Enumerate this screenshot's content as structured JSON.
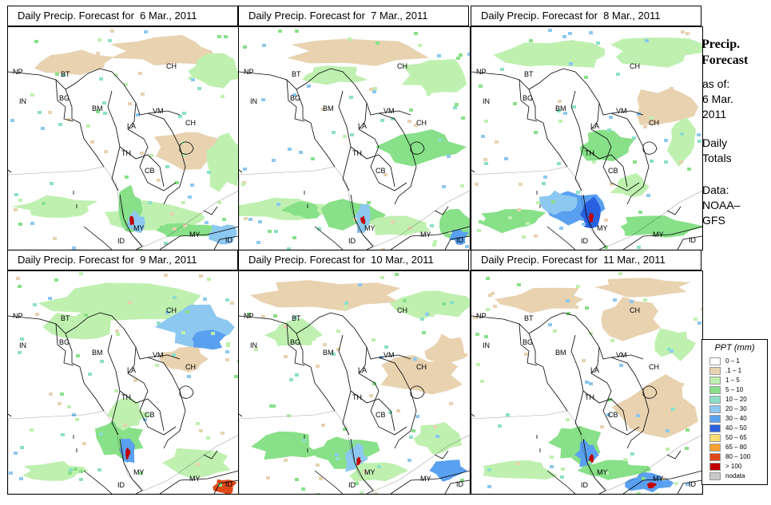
{
  "panels": [
    {
      "title": "Daily Precip. Forecast for  6 Mar., 2011"
    },
    {
      "title": "Daily Precip. Forecast for  7 Mar., 2011"
    },
    {
      "title": "Daily Precip. Forecast for  8 Mar., 2011"
    },
    {
      "title": "Daily Precip. Forecast for  9 Mar., 2011"
    },
    {
      "title": "Daily Precip. Forecast for  10 Mar., 2011"
    },
    {
      "title": "Daily Precip. Forecast for  11 Mar., 2011"
    }
  ],
  "country_labels": [
    "NP",
    "BT",
    "BG",
    "IN",
    "BM",
    "CH",
    "VM",
    "LA",
    "CH",
    "TH",
    "CB",
    "MY",
    "ID",
    "MY",
    "ID"
  ],
  "sidebar": {
    "title_line1": "Precip.",
    "title_line2": "Forecast",
    "asof_line1": "as of:",
    "asof_line2": "6 Mar.",
    "asof_line3": "2011",
    "daily_line1": "Daily",
    "daily_line2": "Totals",
    "data_line1": "Data:",
    "data_line2": "NOAA–",
    "data_line3": "GFS"
  },
  "legend": {
    "title": "PPT (mm)",
    "items": [
      {
        "label": "0 – 1",
        "color": "#ffffff"
      },
      {
        "label": ".1 – 1",
        "color": "#e8d2b0"
      },
      {
        "label": "1 – 5",
        "color": "#bff0b0"
      },
      {
        "label": "5 – 10",
        "color": "#88e088"
      },
      {
        "label": "10 – 20",
        "color": "#8ce0c8"
      },
      {
        "label": "20 – 30",
        "color": "#8cc8f0"
      },
      {
        "label": "30 – 40",
        "color": "#5aa0f0"
      },
      {
        "label": "40 – 50",
        "color": "#2860e0"
      },
      {
        "label": "50 – 65",
        "color": "#f8e070"
      },
      {
        "label": "65 – 80",
        "color": "#f8a030"
      },
      {
        "label": "80 – 100",
        "color": "#e04818"
      },
      {
        "label": "> 100",
        "color": "#c00000"
      },
      {
        "label": "nodata",
        "color": "#c8c8c8"
      }
    ]
  }
}
